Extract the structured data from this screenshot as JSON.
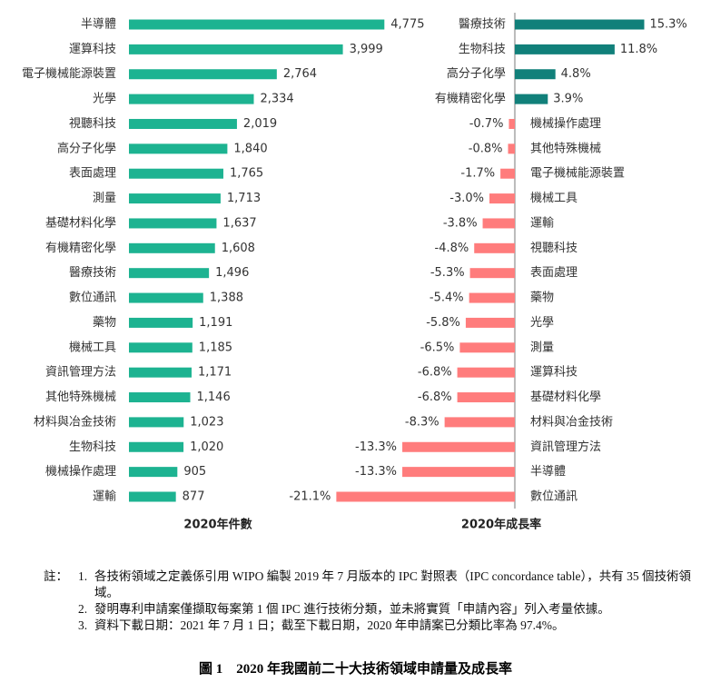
{
  "chart_data": [
    {
      "type": "hbar",
      "x_label": "2020年件數",
      "color": "#1db391",
      "categories": [
        "半導體",
        "運算科技",
        "電子機械能源裝置",
        "光學",
        "視聽科技",
        "高分子化學",
        "表面處理",
        "測量",
        "基礎材料化學",
        "有機精密化學",
        "醫療技術",
        "數位通訊",
        "藥物",
        "機械工具",
        "資訊管理方法",
        "其他特殊機械",
        "材料與冶金技術",
        "生物科技",
        "機械操作處理",
        "運輸"
      ],
      "values": [
        4775,
        3999,
        2764,
        2334,
        2019,
        1840,
        1765,
        1713,
        1637,
        1608,
        1496,
        1388,
        1191,
        1185,
        1171,
        1146,
        1023,
        1020,
        905,
        877
      ],
      "value_labels": [
        "4,775",
        "3,999",
        "2,764",
        "2,334",
        "2,019",
        "1,840",
        "1,765",
        "1,713",
        "1,637",
        "1,608",
        "1,496",
        "1,388",
        "1,191",
        "1,185",
        "1,171",
        "1,146",
        "1,023",
        "1,020",
        "905",
        "877"
      ],
      "xlim": [
        0,
        5500
      ]
    },
    {
      "type": "diverging-hbar",
      "x_label": "2020年成長率",
      "positive_color": "#11807a",
      "negative_color": "#ff7c7c",
      "categories": [
        "醫療技術",
        "生物科技",
        "高分子化學",
        "有機精密化學",
        "機械操作處理",
        "其他特殊機械",
        "電子機械能源裝置",
        "機械工具",
        "運輸",
        "視聽科技",
        "表面處理",
        "藥物",
        "光學",
        "測量",
        "運算科技",
        "基礎材料化學",
        "材料與冶金技術",
        "資訊管理方法",
        "半導體",
        "數位通訊"
      ],
      "values": [
        15.3,
        11.8,
        4.8,
        3.9,
        -0.7,
        -0.8,
        -1.7,
        -3.0,
        -3.8,
        -4.8,
        -5.3,
        -5.4,
        -5.8,
        -6.5,
        -6.8,
        -6.8,
        -8.3,
        -13.3,
        -13.3,
        -21.1
      ],
      "value_labels": [
        "15.3%",
        "11.8%",
        "4.8%",
        "3.9%",
        "-0.7%",
        "-0.8%",
        "-1.7%",
        "-3.0%",
        "-3.8%",
        "-4.8%",
        "-5.3%",
        "-5.4%",
        "-5.8%",
        "-6.5%",
        "-6.8%",
        "-6.8%",
        "-8.3%",
        "-13.3%",
        "-13.3%",
        "-21.1%"
      ],
      "xlim": [
        -22,
        16
      ]
    }
  ],
  "notes": {
    "lead": "註：",
    "items": [
      {
        "number": "1.",
        "text": "各技術領域之定義係引用 WIPO 編製 2019 年 7 月版本的 IPC 對照表（IPC concordance table），共有 35 個技術領域。"
      },
      {
        "number": "2.",
        "text": "發明專利申請案僅擷取每案第 1 個 IPC 進行技術分類，並未將實質「申請內容」列入考量依據。"
      },
      {
        "number": "3.",
        "text": "資料下載日期：2021 年 7 月 1 日；截至下載日期，2020 年申請案已分類比率為 97.4%。"
      }
    ]
  },
  "caption": "圖 1　2020 年我國前二十大技術領域申請量及成長率"
}
